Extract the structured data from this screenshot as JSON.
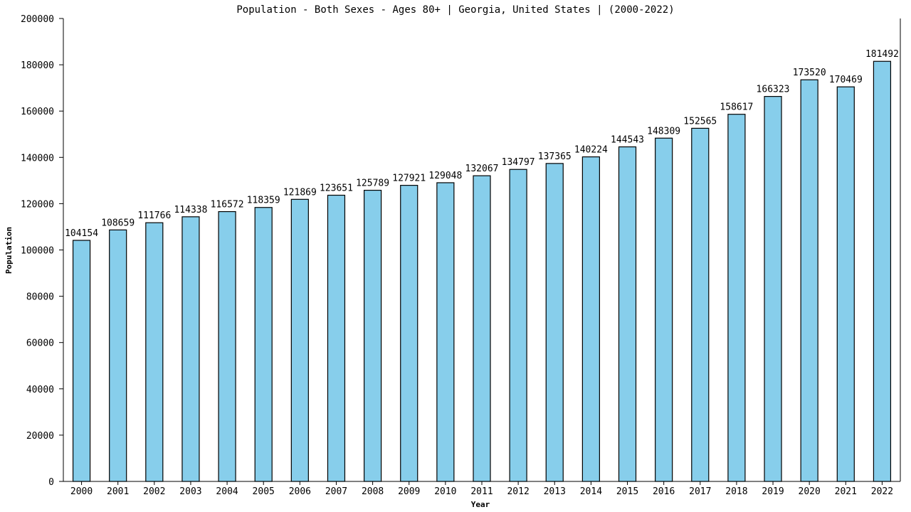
{
  "chart_data": {
    "type": "bar",
    "title": "Population - Both Sexes - Ages 80+ | Georgia, United States |  (2000-2022)",
    "xlabel": "Year",
    "ylabel": "Population",
    "categories": [
      "2000",
      "2001",
      "2002",
      "2003",
      "2004",
      "2005",
      "2006",
      "2007",
      "2008",
      "2009",
      "2010",
      "2011",
      "2012",
      "2013",
      "2014",
      "2015",
      "2016",
      "2017",
      "2018",
      "2019",
      "2020",
      "2021",
      "2022"
    ],
    "values": [
      104154,
      108659,
      111766,
      114338,
      116572,
      118359,
      121869,
      123651,
      125789,
      127921,
      129048,
      132067,
      134797,
      137365,
      140224,
      144543,
      148309,
      152565,
      158617,
      166323,
      173520,
      170469,
      181492
    ],
    "ylim": [
      0,
      200000
    ],
    "yticks": [
      0,
      20000,
      40000,
      60000,
      80000,
      100000,
      120000,
      140000,
      160000,
      180000,
      200000
    ],
    "grid": false,
    "legend": "none",
    "bar_color": "#87ceeb"
  }
}
